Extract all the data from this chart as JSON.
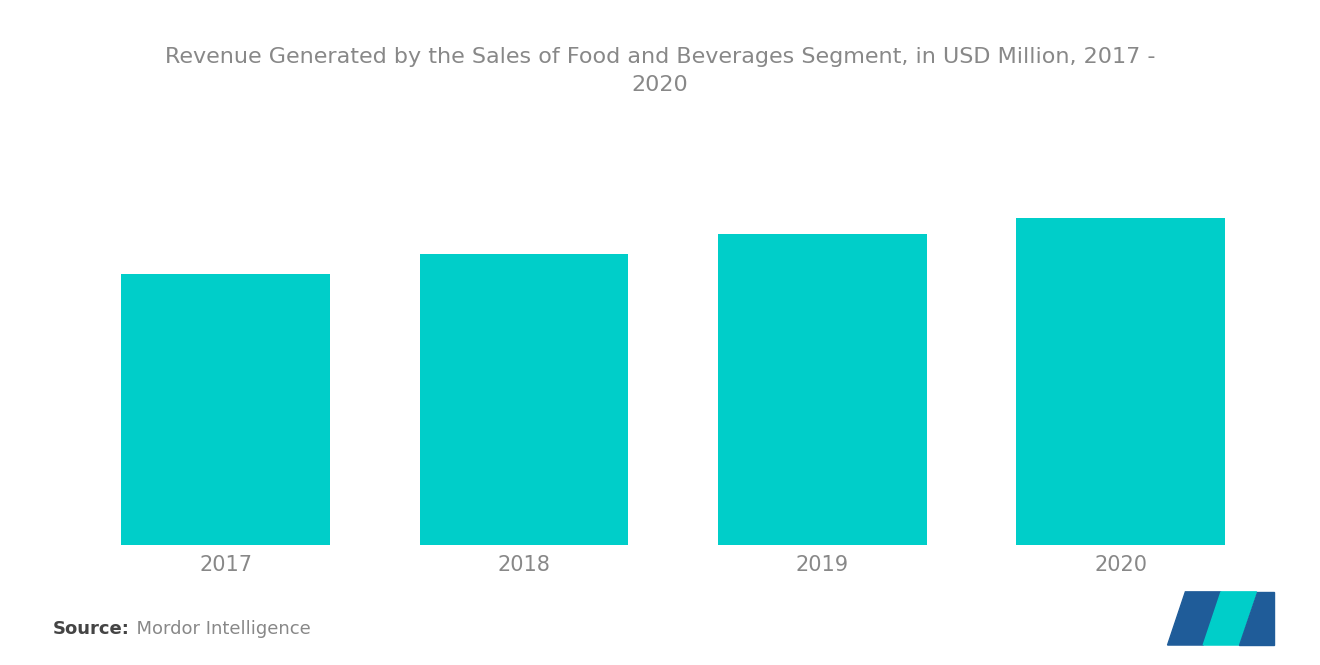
{
  "title": "Revenue Generated by the Sales of Food and Beverages Segment, in USD Million, 2017 -\n2020",
  "categories": [
    "2017",
    "2018",
    "2019",
    "2020"
  ],
  "values": [
    68,
    73,
    78,
    82
  ],
  "bar_color": "#00CEC9",
  "background_color": "#ffffff",
  "title_fontsize": 16,
  "tick_fontsize": 15,
  "source_bold": "Source:",
  "source_normal": "  Mordor Intelligence",
  "bar_width": 0.7,
  "ylim": [
    0,
    100
  ],
  "title_color": "#888888",
  "tick_color": "#888888",
  "logo_left_color": "#1F5C99",
  "logo_right_color": "#00CEC9"
}
